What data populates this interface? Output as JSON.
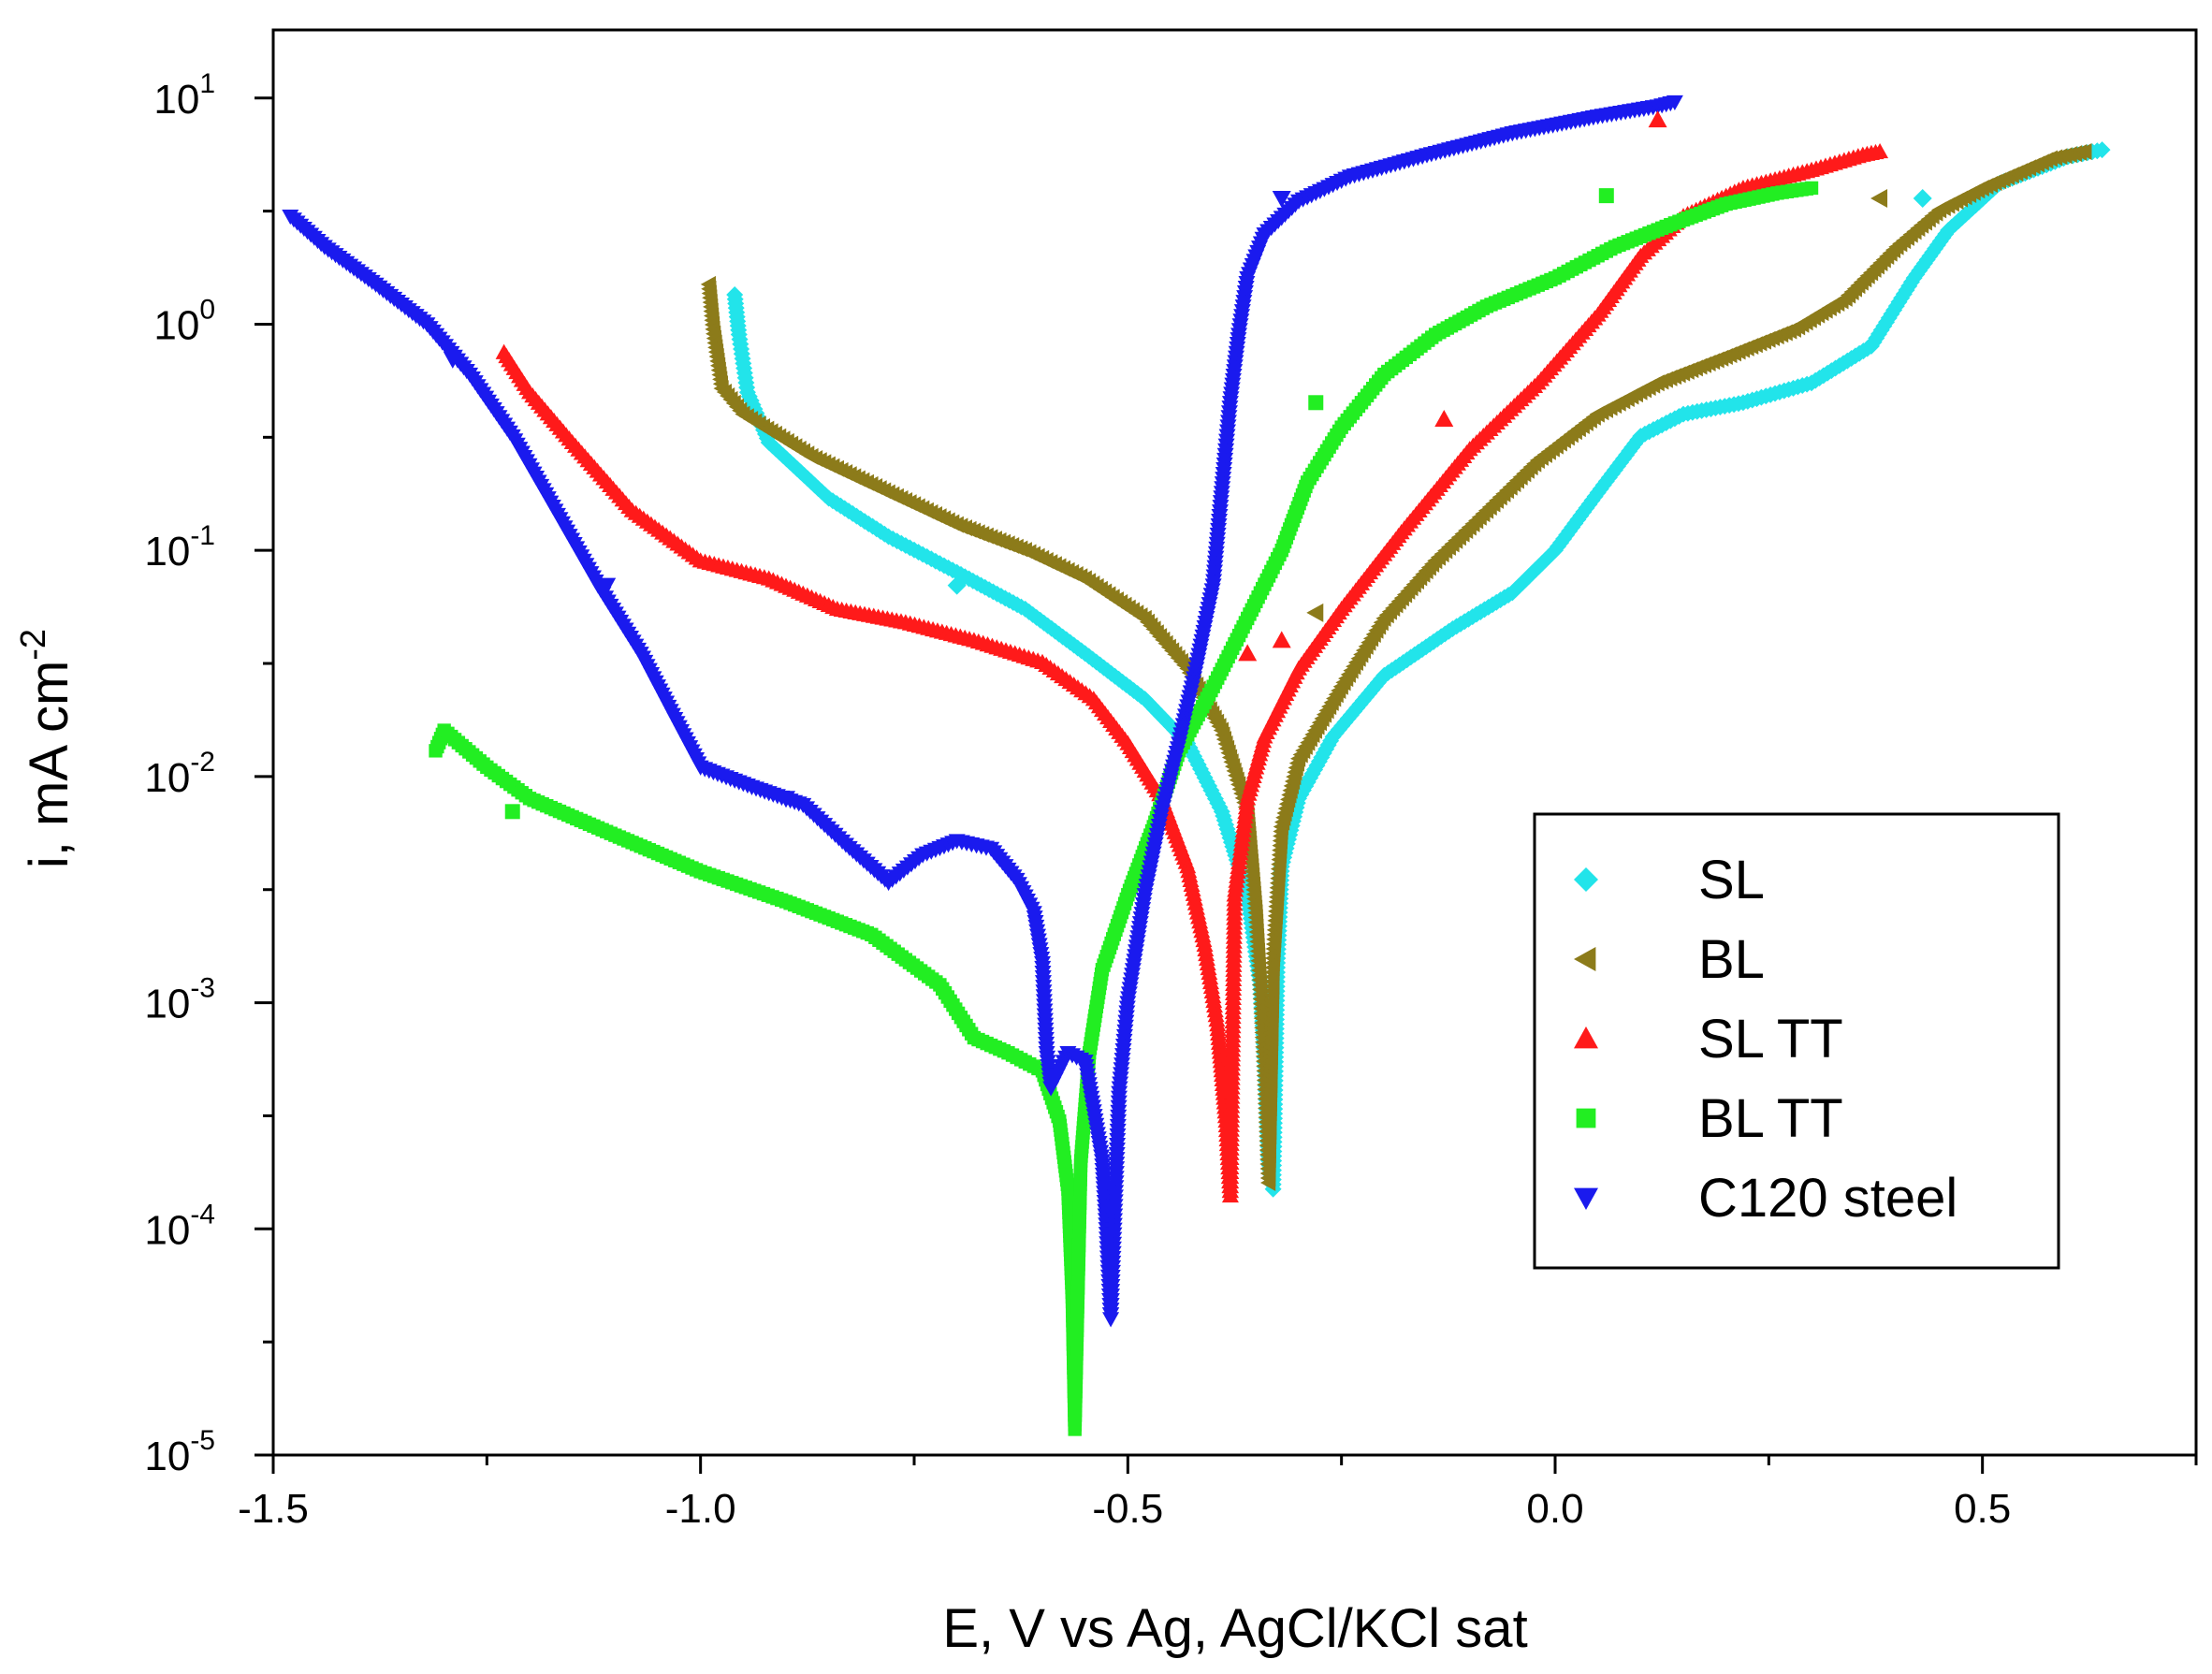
{
  "chart_data": {
    "type": "scatter",
    "xlabel": "E, V vs Ag, AgCl/KCl sat",
    "ylabel": "i, mA cm",
    "ylabel_sup": "-2",
    "xlim": [
      -1.5,
      0.75
    ],
    "ylim": [
      1e-05,
      20
    ],
    "yscale": "log",
    "x_ticks": [
      -1.5,
      -1.0,
      -0.5,
      0.0,
      0.5
    ],
    "x_tick_labels": [
      "-1.5",
      "-1.0",
      "-0.5",
      "0.0",
      "0.5"
    ],
    "y_ticks": [
      {
        "value": 10,
        "base": "10",
        "exp": "1"
      },
      {
        "value": 1,
        "base": "10",
        "exp": "0"
      },
      {
        "value": 0.1,
        "base": "10",
        "exp": "-1"
      },
      {
        "value": 0.01,
        "base": "10",
        "exp": "-2"
      },
      {
        "value": 0.001,
        "base": "10",
        "exp": "-3"
      },
      {
        "value": 0.0001,
        "base": "10",
        "exp": "-4"
      },
      {
        "value": 1e-05,
        "base": "10",
        "exp": "-5"
      }
    ],
    "grid": false,
    "legend_position": "right-center",
    "series": [
      {
        "name": "SL",
        "color": "#22e4ea",
        "marker": "diamond",
        "points": [
          [
            -0.96,
            1.35
          ],
          [
            -0.955,
            0.9
          ],
          [
            -0.945,
            0.5
          ],
          [
            -0.92,
            0.3
          ],
          [
            -0.85,
            0.17
          ],
          [
            -0.78,
            0.115
          ],
          [
            -0.7,
            0.08
          ],
          [
            -0.62,
            0.055
          ],
          [
            -0.55,
            0.035
          ],
          [
            -0.48,
            0.022
          ],
          [
            -0.43,
            0.014
          ],
          [
            -0.39,
            0.007
          ],
          [
            -0.36,
            0.003
          ],
          [
            -0.345,
            0.0012
          ],
          [
            -0.34,
            0.0006
          ],
          [
            -0.335,
            0.0002
          ],
          [
            -0.33,
            0.00015
          ],
          [
            -0.325,
            0.0015
          ],
          [
            -0.32,
            0.004
          ],
          [
            -0.3,
            0.008
          ],
          [
            -0.26,
            0.015
          ],
          [
            -0.2,
            0.028
          ],
          [
            -0.12,
            0.045
          ],
          [
            -0.05,
            0.065
          ],
          [
            0.0,
            0.1
          ],
          [
            0.05,
            0.18
          ],
          [
            0.1,
            0.32
          ],
          [
            0.15,
            0.4
          ],
          [
            0.22,
            0.45
          ],
          [
            0.3,
            0.55
          ],
          [
            0.37,
            0.8
          ],
          [
            0.42,
            1.6
          ],
          [
            0.46,
            2.6
          ],
          [
            0.52,
            4.2
          ],
          [
            0.6,
            5.5
          ],
          [
            0.64,
            5.9
          ]
        ]
      },
      {
        "name": "BL",
        "color": "#8c7b1a",
        "marker": "triangle-left",
        "points": [
          [
            -0.99,
            1.5
          ],
          [
            -0.985,
            0.95
          ],
          [
            -0.975,
            0.52
          ],
          [
            -0.95,
            0.4
          ],
          [
            -0.87,
            0.26
          ],
          [
            -0.78,
            0.18
          ],
          [
            -0.7,
            0.13
          ],
          [
            -0.62,
            0.1
          ],
          [
            -0.55,
            0.075
          ],
          [
            -0.48,
            0.05
          ],
          [
            -0.43,
            0.03
          ],
          [
            -0.39,
            0.016
          ],
          [
            -0.36,
            0.007
          ],
          [
            -0.35,
            0.0025
          ],
          [
            -0.345,
            0.0012
          ],
          [
            -0.34,
            0.0005
          ],
          [
            -0.335,
            0.00016
          ],
          [
            -0.33,
            0.0015
          ],
          [
            -0.32,
            0.006
          ],
          [
            -0.3,
            0.012
          ],
          [
            -0.25,
            0.025
          ],
          [
            -0.2,
            0.05
          ],
          [
            -0.14,
            0.09
          ],
          [
            -0.08,
            0.15
          ],
          [
            -0.02,
            0.25
          ],
          [
            0.05,
            0.4
          ],
          [
            0.12,
            0.55
          ],
          [
            0.2,
            0.72
          ],
          [
            0.28,
            0.95
          ],
          [
            0.34,
            1.3
          ],
          [
            0.4,
            2.2
          ],
          [
            0.45,
            3.2
          ],
          [
            0.5,
            4.0
          ],
          [
            0.58,
            5.4
          ],
          [
            0.62,
            5.8
          ]
        ]
      },
      {
        "name": "SL TT",
        "color": "#ff1a1a",
        "marker": "triangle-up",
        "points": [
          [
            -1.23,
            0.75
          ],
          [
            -1.2,
            0.5
          ],
          [
            -1.15,
            0.3
          ],
          [
            -1.08,
            0.15
          ],
          [
            -1.0,
            0.09
          ],
          [
            -0.92,
            0.075
          ],
          [
            -0.84,
            0.055
          ],
          [
            -0.76,
            0.048
          ],
          [
            -0.68,
            0.04
          ],
          [
            -0.6,
            0.032
          ],
          [
            -0.54,
            0.022
          ],
          [
            -0.5,
            0.014
          ],
          [
            -0.46,
            0.008
          ],
          [
            -0.43,
            0.004
          ],
          [
            -0.41,
            0.0018
          ],
          [
            -0.395,
            0.0008
          ],
          [
            -0.385,
            0.0003
          ],
          [
            -0.38,
            0.00014
          ],
          [
            -0.375,
            0.003
          ],
          [
            -0.36,
            0.008
          ],
          [
            -0.34,
            0.015
          ],
          [
            -0.3,
            0.03
          ],
          [
            -0.25,
            0.055
          ],
          [
            -0.18,
            0.12
          ],
          [
            -0.1,
            0.28
          ],
          [
            -0.02,
            0.55
          ],
          [
            0.05,
            1.1
          ],
          [
            0.1,
            2.0
          ],
          [
            0.15,
            3.0
          ],
          [
            0.22,
            4.0
          ],
          [
            0.3,
            4.8
          ],
          [
            0.36,
            5.6
          ],
          [
            0.38,
            5.8
          ]
        ]
      },
      {
        "name": "BL TT",
        "color": "#22ee22",
        "marker": "square",
        "points": [
          [
            -1.31,
            0.013
          ],
          [
            -1.3,
            0.016
          ],
          [
            -1.25,
            0.011
          ],
          [
            -1.2,
            0.008
          ],
          [
            -1.1,
            0.0055
          ],
          [
            -1.0,
            0.0038
          ],
          [
            -0.9,
            0.0028
          ],
          [
            -0.8,
            0.002
          ],
          [
            -0.72,
            0.0012
          ],
          [
            -0.68,
            0.0007
          ],
          [
            -0.64,
            0.0006
          ],
          [
            -0.6,
            0.0005
          ],
          [
            -0.58,
            0.0003
          ],
          [
            -0.57,
            0.00015
          ],
          [
            -0.565,
            5e-05
          ],
          [
            -0.562,
            1.3e-05
          ],
          [
            -0.555,
            0.0002
          ],
          [
            -0.545,
            0.0006
          ],
          [
            -0.53,
            0.0014
          ],
          [
            -0.5,
            0.003
          ],
          [
            -0.47,
            0.006
          ],
          [
            -0.44,
            0.013
          ],
          [
            -0.4,
            0.025
          ],
          [
            -0.36,
            0.05
          ],
          [
            -0.32,
            0.1
          ],
          [
            -0.29,
            0.2
          ],
          [
            -0.25,
            0.35
          ],
          [
            -0.2,
            0.6
          ],
          [
            -0.14,
            0.9
          ],
          [
            -0.08,
            1.2
          ],
          [
            0.0,
            1.6
          ],
          [
            0.07,
            2.2
          ],
          [
            0.14,
            2.8
          ],
          [
            0.2,
            3.4
          ],
          [
            0.26,
            3.8
          ],
          [
            0.3,
            4.0
          ]
        ]
      },
      {
        "name": "C120 steel",
        "color": "#1a1aee",
        "marker": "triangle-down",
        "points": [
          [
            -1.48,
            3.0
          ],
          [
            -1.44,
            2.2
          ],
          [
            -1.38,
            1.5
          ],
          [
            -1.32,
            1.0
          ],
          [
            -1.27,
            0.6
          ],
          [
            -1.22,
            0.32
          ],
          [
            -1.17,
            0.15
          ],
          [
            -1.12,
            0.07
          ],
          [
            -1.07,
            0.035
          ],
          [
            -1.03,
            0.018
          ],
          [
            -1.0,
            0.011
          ],
          [
            -0.94,
            0.009
          ],
          [
            -0.88,
            0.0075
          ],
          [
            -0.83,
            0.005
          ],
          [
            -0.78,
            0.0034
          ],
          [
            -0.74,
            0.0045
          ],
          [
            -0.7,
            0.0052
          ],
          [
            -0.66,
            0.0048
          ],
          [
            -0.63,
            0.0035
          ],
          [
            -0.61,
            0.0025
          ],
          [
            -0.6,
            0.0015
          ],
          [
            -0.595,
            0.0006
          ],
          [
            -0.59,
            0.00042
          ],
          [
            -0.57,
            0.0006
          ],
          [
            -0.55,
            0.00055
          ],
          [
            -0.53,
            0.0002
          ],
          [
            -0.525,
            0.0001
          ],
          [
            -0.52,
            4e-05
          ],
          [
            -0.51,
            0.0004
          ],
          [
            -0.5,
            0.001
          ],
          [
            -0.48,
            0.003
          ],
          [
            -0.46,
            0.007
          ],
          [
            -0.44,
            0.014
          ],
          [
            -0.42,
            0.03
          ],
          [
            -0.4,
            0.07
          ],
          [
            -0.39,
            0.18
          ],
          [
            -0.38,
            0.45
          ],
          [
            -0.37,
            0.9
          ],
          [
            -0.36,
            1.6
          ],
          [
            -0.34,
            2.5
          ],
          [
            -0.3,
            3.5
          ],
          [
            -0.24,
            4.5
          ],
          [
            -0.15,
            5.6
          ],
          [
            -0.05,
            7.0
          ],
          [
            0.05,
            8.3
          ],
          [
            0.12,
            9.2
          ],
          [
            0.14,
            9.6
          ]
        ]
      }
    ],
    "scatter_outliers": [
      {
        "series": "SL",
        "x": -0.7,
        "y": 0.07
      },
      {
        "series": "SL",
        "x": 0.43,
        "y": 3.6
      },
      {
        "series": "BL",
        "x": 0.38,
        "y": 3.6
      },
      {
        "series": "BL",
        "x": -0.28,
        "y": 0.053
      },
      {
        "series": "SL TT",
        "x": 0.12,
        "y": 8.0
      },
      {
        "series": "SL TT",
        "x": -0.13,
        "y": 0.38
      },
      {
        "series": "SL TT",
        "x": -0.32,
        "y": 0.04
      },
      {
        "series": "SL TT",
        "x": -0.36,
        "y": 0.035
      },
      {
        "series": "BL TT",
        "x": 0.06,
        "y": 3.7
      },
      {
        "series": "BL TT",
        "x": -0.28,
        "y": 0.45
      },
      {
        "series": "BL TT",
        "x": -1.22,
        "y": 0.007
      },
      {
        "series": "C120 steel",
        "x": -0.32,
        "y": 3.6
      },
      {
        "series": "C120 steel",
        "x": -1.29,
        "y": 0.7
      },
      {
        "series": "C120 steel",
        "x": -1.11,
        "y": 0.07
      },
      {
        "series": "C120 steel",
        "x": -0.9,
        "y": 0.008
      }
    ]
  }
}
